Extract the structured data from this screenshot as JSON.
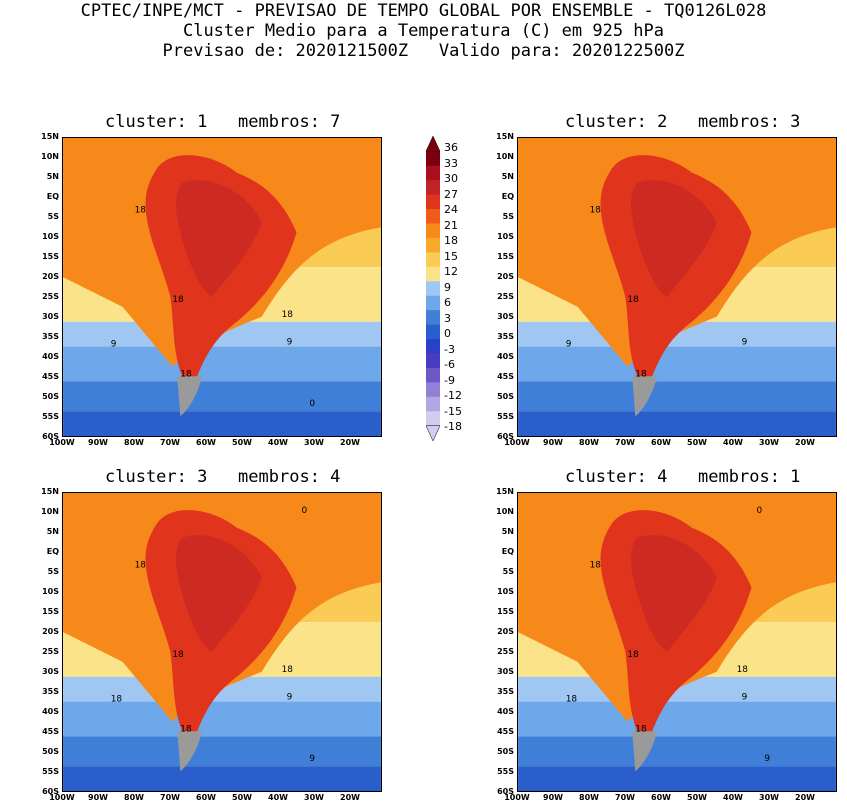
{
  "header": {
    "line1": "CPTEC/INPE/MCT - PREVISAO DE TEMPO GLOBAL POR ENSEMBLE - TQ0126L028",
    "line2": "Cluster Medio para a Temperatura (C) em 925 hPa",
    "line3": "Previsao de: 2020121500Z   Valido para: 2020122500Z"
  },
  "panels": [
    {
      "title": "cluster: 1   membros: 7",
      "contour_labels": [
        "18",
        "18",
        "18",
        "9",
        "9",
        "18",
        "0"
      ]
    },
    {
      "title": "cluster: 2   membros: 3",
      "contour_labels": [
        "18",
        "18",
        "18",
        "9",
        "9"
      ]
    },
    {
      "title": "cluster: 3   membros: 4",
      "contour_labels": [
        "18",
        "18",
        "18",
        "18",
        "9",
        "18",
        "9",
        "0"
      ]
    },
    {
      "title": "cluster: 4   membros: 1",
      "contour_labels": [
        "18",
        "18",
        "18",
        "18",
        "9",
        "18",
        "9",
        "0"
      ]
    }
  ],
  "lat_ticks": [
    "15N",
    "10N",
    "5N",
    "EQ",
    "5S",
    "10S",
    "15S",
    "20S",
    "25S",
    "30S",
    "35S",
    "40S",
    "45S",
    "50S",
    "55S",
    "60S"
  ],
  "lon_ticks": [
    "100W",
    "90W",
    "80W",
    "70W",
    "60W",
    "50W",
    "40W",
    "30W",
    "20W"
  ],
  "colorbar": {
    "labels": [
      "36",
      "33",
      "30",
      "27",
      "24",
      "21",
      "18",
      "15",
      "12",
      "9",
      "6",
      "3",
      "0",
      "-3",
      "-6",
      "-9",
      "-12",
      "-15",
      "-18"
    ],
    "colors": [
      "#7a0010",
      "#a8101e",
      "#c02424",
      "#e0341c",
      "#f05a1a",
      "#f7891a",
      "#f8a82a",
      "#fbcc55",
      "#fbe38a",
      "#9fc7f2",
      "#6ea8ea",
      "#3f7fd8",
      "#2a5fcb",
      "#2a40c8",
      "#4a3cc0",
      "#6e58c8",
      "#9280d6",
      "#b3a6e2",
      "#d4ccef"
    ]
  }
}
